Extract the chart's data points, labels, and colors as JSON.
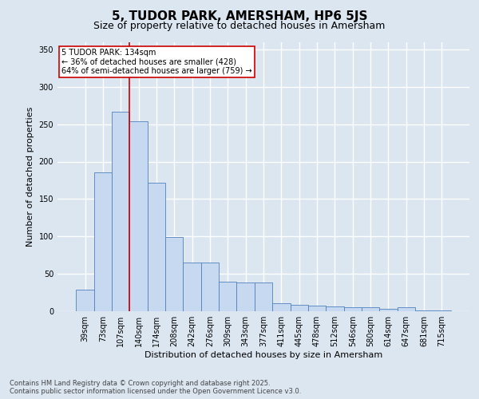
{
  "title": "5, TUDOR PARK, AMERSHAM, HP6 5JS",
  "subtitle": "Size of property relative to detached houses in Amersham",
  "xlabel": "Distribution of detached houses by size in Amersham",
  "ylabel": "Number of detached properties",
  "footnote": "Contains HM Land Registry data © Crown copyright and database right 2025.\nContains public sector information licensed under the Open Government Licence v3.0.",
  "categories": [
    "39sqm",
    "73sqm",
    "107sqm",
    "140sqm",
    "174sqm",
    "208sqm",
    "242sqm",
    "276sqm",
    "309sqm",
    "343sqm",
    "377sqm",
    "411sqm",
    "445sqm",
    "478sqm",
    "512sqm",
    "546sqm",
    "580sqm",
    "614sqm",
    "647sqm",
    "681sqm",
    "715sqm"
  ],
  "values": [
    29,
    186,
    267,
    254,
    172,
    99,
    65,
    65,
    40,
    38,
    38,
    11,
    9,
    7,
    6,
    5,
    5,
    3,
    5,
    1,
    1
  ],
  "bar_color": "#c6d9f0",
  "bar_edge_color": "#4f81bd",
  "background_color": "#dce6f1",
  "grid_color": "#ffffff",
  "annotation_box_text": "5 TUDOR PARK: 134sqm\n← 36% of detached houses are smaller (428)\n64% of semi-detached houses are larger (759) →",
  "vline_color": "#cc0000",
  "ylim": [
    0,
    360
  ],
  "yticks": [
    0,
    50,
    100,
    150,
    200,
    250,
    300,
    350
  ],
  "title_fontsize": 11,
  "subtitle_fontsize": 9,
  "label_fontsize": 8,
  "tick_fontsize": 7,
  "footnote_fontsize": 6
}
